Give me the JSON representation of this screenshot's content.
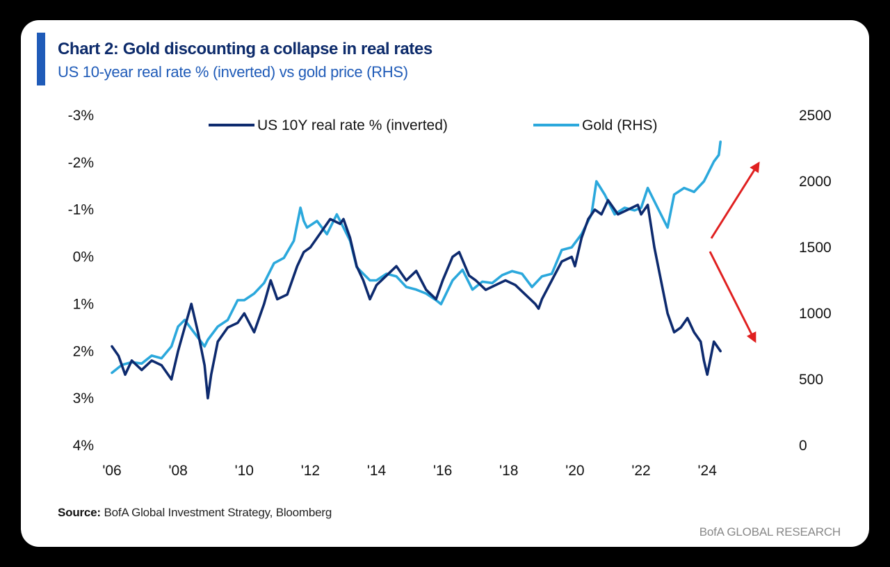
{
  "header": {
    "title": "Chart 2: Gold discounting a collapse in real rates",
    "subtitle": "US 10-year real rate % (inverted) vs gold price (RHS)"
  },
  "footer": {
    "source_label": "Source:",
    "source_text": "BofA Global Investment Strategy, Bloomberg",
    "brand": "BofA GLOBAL RESEARCH"
  },
  "colors": {
    "real_rate": "#0d2a6e",
    "gold": "#2ba8dc",
    "arrows": "#e02020",
    "accent": "#1f5bb8"
  },
  "chart_data": {
    "type": "line",
    "title": "Chart 2: Gold discounting a collapse in real rates",
    "subtitle": "US 10-year real rate % (inverted) vs gold price (RHS)",
    "x_ticks": [
      "'06",
      "'08",
      "'10",
      "'12",
      "'14",
      "'16",
      "'18",
      "'20",
      "'22",
      "'24"
    ],
    "xlim": [
      2006,
      2024.9
    ],
    "left_axis": {
      "inverted": true,
      "ylim": [
        -3,
        4
      ],
      "tick_values": [
        -3,
        -2,
        -1,
        0,
        1,
        2,
        3,
        4
      ],
      "tick_labels": [
        "-3%",
        "-2%",
        "-1%",
        "0%",
        "1%",
        "2%",
        "3%",
        "4%"
      ]
    },
    "right_axis": {
      "ylim": [
        0,
        2500
      ],
      "tick_values": [
        0,
        500,
        1000,
        1500,
        2000,
        2500
      ],
      "tick_labels": [
        "0",
        "500",
        "1000",
        "1500",
        "2000",
        "2500"
      ]
    },
    "legend_position": "top",
    "grid": false,
    "annotations": [
      "red arrow pointing up-right at gold (recent)",
      "red arrow pointing down-right at real rate inverted (recent)"
    ],
    "series": [
      {
        "name": "US 10Y real rate % (inverted)",
        "axis": "left",
        "x": [
          2006.0,
          2006.2,
          2006.4,
          2006.6,
          2006.9,
          2007.2,
          2007.5,
          2007.8,
          2008.0,
          2008.2,
          2008.4,
          2008.6,
          2008.8,
          2008.9,
          2009.0,
          2009.2,
          2009.5,
          2009.8,
          2010.0,
          2010.3,
          2010.6,
          2010.8,
          2011.0,
          2011.3,
          2011.6,
          2011.8,
          2012.0,
          2012.3,
          2012.6,
          2012.9,
          2013.0,
          2013.2,
          2013.4,
          2013.6,
          2013.8,
          2014.0,
          2014.3,
          2014.6,
          2014.9,
          2015.2,
          2015.5,
          2015.8,
          2016.0,
          2016.3,
          2016.5,
          2016.8,
          2017.0,
          2017.3,
          2017.6,
          2017.9,
          2018.2,
          2018.5,
          2018.8,
          2018.9,
          2019.0,
          2019.3,
          2019.6,
          2019.9,
          2020.0,
          2020.2,
          2020.4,
          2020.6,
          2020.8,
          2021.0,
          2021.3,
          2021.6,
          2021.9,
          2022.0,
          2022.2,
          2022.4,
          2022.6,
          2022.8,
          2023.0,
          2023.2,
          2023.4,
          2023.6,
          2023.8,
          2023.9,
          2024.0,
          2024.2,
          2024.4
        ],
        "values": [
          1.9,
          2.1,
          2.5,
          2.2,
          2.4,
          2.2,
          2.3,
          2.6,
          2.0,
          1.5,
          1.0,
          1.6,
          2.3,
          3.0,
          2.5,
          1.8,
          1.5,
          1.4,
          1.2,
          1.6,
          1.0,
          0.5,
          0.9,
          0.8,
          0.2,
          -0.1,
          -0.2,
          -0.5,
          -0.8,
          -0.7,
          -0.8,
          -0.4,
          0.2,
          0.5,
          0.9,
          0.6,
          0.4,
          0.2,
          0.5,
          0.3,
          0.7,
          0.9,
          0.5,
          0.0,
          -0.1,
          0.4,
          0.5,
          0.7,
          0.6,
          0.5,
          0.6,
          0.8,
          1.0,
          1.1,
          0.9,
          0.5,
          0.1,
          0.0,
          0.2,
          -0.4,
          -0.8,
          -1.0,
          -0.9,
          -1.2,
          -0.9,
          -1.0,
          -1.1,
          -0.9,
          -1.1,
          -0.2,
          0.5,
          1.2,
          1.6,
          1.5,
          1.3,
          1.6,
          1.8,
          2.2,
          2.5,
          1.8,
          2.0
        ]
      },
      {
        "name": "Gold (RHS)",
        "axis": "right",
        "x": [
          2006.0,
          2006.3,
          2006.6,
          2006.9,
          2007.2,
          2007.5,
          2007.8,
          2008.0,
          2008.2,
          2008.5,
          2008.8,
          2008.9,
          2009.2,
          2009.5,
          2009.8,
          2010.0,
          2010.3,
          2010.6,
          2010.9,
          2011.2,
          2011.5,
          2011.7,
          2011.8,
          2011.9,
          2012.2,
          2012.5,
          2012.8,
          2013.0,
          2013.2,
          2013.4,
          2013.6,
          2013.8,
          2014.0,
          2014.3,
          2014.6,
          2014.9,
          2015.2,
          2015.5,
          2015.8,
          2015.95,
          2016.3,
          2016.6,
          2016.9,
          2017.2,
          2017.5,
          2017.8,
          2018.1,
          2018.4,
          2018.7,
          2019.0,
          2019.3,
          2019.6,
          2019.9,
          2020.2,
          2020.5,
          2020.65,
          2020.9,
          2021.2,
          2021.5,
          2021.8,
          2022.0,
          2022.2,
          2022.5,
          2022.8,
          2023.0,
          2023.3,
          2023.6,
          2023.9,
          2024.0,
          2024.2,
          2024.35,
          2024.4
        ],
        "values": [
          550,
          610,
          630,
          620,
          680,
          660,
          750,
          900,
          950,
          850,
          750,
          800,
          900,
          950,
          1100,
          1100,
          1150,
          1230,
          1380,
          1420,
          1550,
          1800,
          1700,
          1650,
          1700,
          1600,
          1750,
          1650,
          1550,
          1350,
          1300,
          1250,
          1250,
          1300,
          1280,
          1200,
          1180,
          1150,
          1100,
          1070,
          1250,
          1330,
          1180,
          1240,
          1230,
          1290,
          1320,
          1300,
          1200,
          1280,
          1300,
          1480,
          1500,
          1600,
          1750,
          2000,
          1900,
          1750,
          1800,
          1780,
          1800,
          1950,
          1800,
          1650,
          1900,
          1950,
          1920,
          2000,
          2050,
          2150,
          2200,
          2300
        ]
      }
    ]
  }
}
